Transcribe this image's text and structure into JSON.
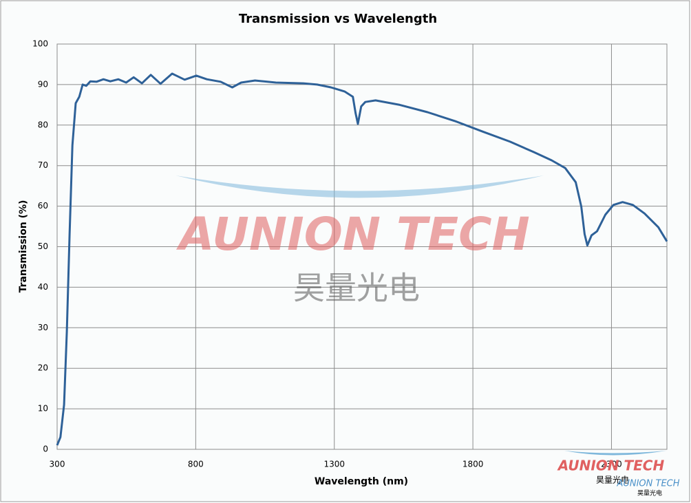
{
  "chart_data": {
    "type": "line",
    "title": "Transmission vs Wavelength",
    "x_label": "Wavelength (nm)",
    "y_label": "Transmission (%)",
    "x": [
      300,
      312,
      325,
      335,
      345,
      355,
      367,
      380,
      392,
      405,
      420,
      442,
      467,
      492,
      521,
      549,
      576,
      606,
      638,
      673,
      715,
      760,
      802,
      840,
      890,
      932,
      964,
      1014,
      1089,
      1188,
      1238,
      1288,
      1337,
      1367,
      1377,
      1385,
      1397,
      1412,
      1449,
      1536,
      1636,
      1735,
      1835,
      1934,
      2021,
      2084,
      2133,
      2171,
      2191,
      2203,
      2213,
      2228,
      2248,
      2278,
      2307,
      2340,
      2377,
      2419,
      2469,
      2500
    ],
    "series": [
      {
        "name": "Transmission",
        "color": "#2e6198",
        "values": [
          1,
          3,
          11,
          29,
          53,
          75,
          85.4,
          87,
          90,
          89.7,
          90.8,
          90.7,
          91.3,
          90.8,
          91.3,
          90.5,
          91.8,
          90.3,
          92.4,
          90.2,
          92.7,
          91.2,
          92.2,
          91.3,
          90.7,
          89.3,
          90.5,
          91,
          90.5,
          90.3,
          90,
          89.3,
          88.3,
          87,
          82.9,
          80.3,
          84.6,
          85.7,
          86.1,
          85,
          83.2,
          81,
          78.4,
          75.9,
          73.3,
          71.3,
          69.4,
          65.9,
          59.9,
          53.1,
          50.3,
          52.8,
          53.8,
          57.9,
          60.3,
          61,
          60.3,
          58.2,
          54.8,
          51.3
        ]
      }
    ],
    "xlim": [
      300,
      2500
    ],
    "xticks": [
      300,
      800,
      1300,
      1800,
      2300
    ],
    "ylim": [
      0,
      100
    ],
    "yticks": [
      0,
      10,
      20,
      30,
      40,
      50,
      60,
      70,
      80,
      90,
      100
    ],
    "grid": true,
    "watermark": {
      "brand": "AUNION TECH",
      "chinese": "昊量光电"
    },
    "logo": {
      "brand": "AUNION TECH",
      "chinese": "昊量光电",
      "brand_shadow": "AUNION TECH",
      "chinese_shadow": "昊量光电"
    }
  }
}
